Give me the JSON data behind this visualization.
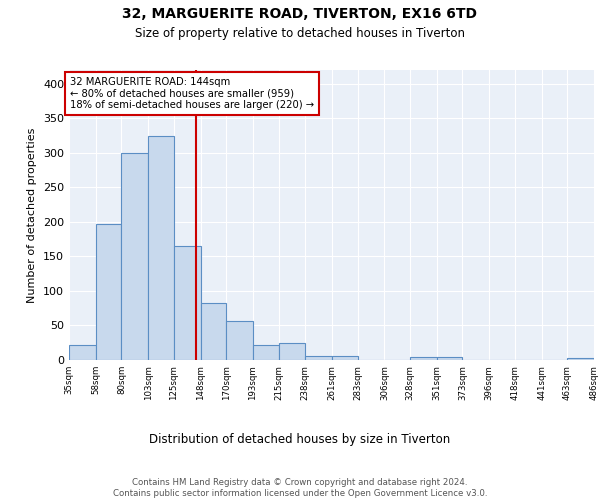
{
  "title1": "32, MARGUERITE ROAD, TIVERTON, EX16 6TD",
  "title2": "Size of property relative to detached houses in Tiverton",
  "xlabel": "Distribution of detached houses by size in Tiverton",
  "ylabel": "Number of detached properties",
  "bin_edges": [
    35,
    58,
    80,
    103,
    125,
    148,
    170,
    193,
    215,
    238,
    261,
    283,
    306,
    328,
    351,
    373,
    396,
    418,
    441,
    463,
    486
  ],
  "bar_heights": [
    22,
    197,
    300,
    325,
    165,
    82,
    57,
    22,
    25,
    6,
    6,
    0,
    0,
    4,
    4,
    0,
    0,
    0,
    0,
    3
  ],
  "bar_color": "#c8d9ed",
  "bar_edge_color": "#5b8ec4",
  "vline_x": 144,
  "vline_color": "#cc0000",
  "annotation_text": "32 MARGUERITE ROAD: 144sqm\n← 80% of detached houses are smaller (959)\n18% of semi-detached houses are larger (220) →",
  "annotation_box_color": "#ffffff",
  "annotation_box_edge": "#cc0000",
  "ylim": [
    0,
    420
  ],
  "background_color": "#eaf0f8",
  "footer_text": "Contains HM Land Registry data © Crown copyright and database right 2024.\nContains public sector information licensed under the Open Government Licence v3.0.",
  "tick_labels": [
    "35sqm",
    "58sqm",
    "80sqm",
    "103sqm",
    "125sqm",
    "148sqm",
    "170sqm",
    "193sqm",
    "215sqm",
    "238sqm",
    "261sqm",
    "283sqm",
    "306sqm",
    "328sqm",
    "351sqm",
    "373sqm",
    "396sqm",
    "418sqm",
    "441sqm",
    "463sqm",
    "486sqm"
  ],
  "yticks": [
    0,
    50,
    100,
    150,
    200,
    250,
    300,
    350,
    400
  ]
}
